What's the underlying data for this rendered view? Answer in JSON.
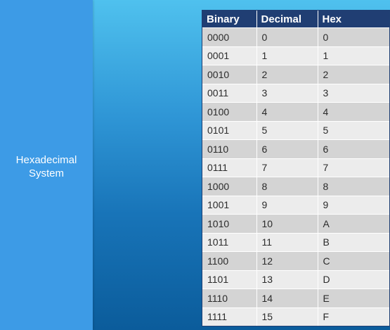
{
  "side": {
    "title_line1": "Hexadecimal",
    "title_line2": "System"
  },
  "table": {
    "headers": [
      "Binary",
      "Decimal",
      "Hex"
    ],
    "rows": [
      [
        "0000",
        "0",
        "0"
      ],
      [
        "0001",
        "1",
        "1"
      ],
      [
        "0010",
        "2",
        "2"
      ],
      [
        "0011",
        "3",
        "3"
      ],
      [
        "0100",
        "4",
        "4"
      ],
      [
        "0101",
        "5",
        "5"
      ],
      [
        "0110",
        "6",
        "6"
      ],
      [
        "0111",
        "7",
        "7"
      ],
      [
        "1000",
        "8",
        "8"
      ],
      [
        "1001",
        "9",
        "9"
      ],
      [
        "1010",
        "10",
        "A"
      ],
      [
        "1011",
        "11",
        "B"
      ],
      [
        "1100",
        "12",
        "C"
      ],
      [
        "1101",
        "13",
        "D"
      ],
      [
        "1110",
        "14",
        "E"
      ],
      [
        "1111",
        "15",
        "F"
      ]
    ]
  },
  "colors": {
    "header_bg": "#203e73",
    "side_panel": "#3d9be6",
    "row_odd": "#d4d4d4",
    "row_even": "#ececec"
  }
}
